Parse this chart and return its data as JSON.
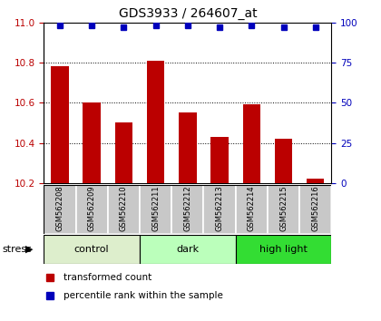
{
  "title": "GDS3933 / 264607_at",
  "samples": [
    "GSM562208",
    "GSM562209",
    "GSM562210",
    "GSM562211",
    "GSM562212",
    "GSM562213",
    "GSM562214",
    "GSM562215",
    "GSM562216"
  ],
  "transformed_counts": [
    10.78,
    10.6,
    10.5,
    10.81,
    10.55,
    10.43,
    10.59,
    10.42,
    10.22
  ],
  "percentile_ranks": [
    98,
    98,
    97,
    98,
    98,
    97,
    98,
    97,
    97
  ],
  "ylim_left": [
    10.2,
    11.0
  ],
  "ylim_right": [
    0,
    100
  ],
  "yticks_left": [
    10.2,
    10.4,
    10.6,
    10.8,
    11.0
  ],
  "yticks_right": [
    0,
    25,
    50,
    75,
    100
  ],
  "bar_color": "#bb0000",
  "dot_color": "#0000bb",
  "group_colors": [
    "#ddeecc",
    "#bbffbb",
    "#33dd33"
  ],
  "groups": [
    {
      "label": "control",
      "indices": [
        0,
        1,
        2
      ]
    },
    {
      "label": "dark",
      "indices": [
        3,
        4,
        5
      ]
    },
    {
      "label": "high light",
      "indices": [
        6,
        7,
        8
      ]
    }
  ],
  "stress_label": "stress",
  "legend_red_label": "transformed count",
  "legend_blue_label": "percentile rank within the sample",
  "sample_box_color": "#c8c8c8",
  "bar_width": 0.55,
  "title_fontsize": 10,
  "tick_fontsize": 7.5,
  "sample_fontsize": 6,
  "group_fontsize": 8,
  "legend_fontsize": 7.5
}
